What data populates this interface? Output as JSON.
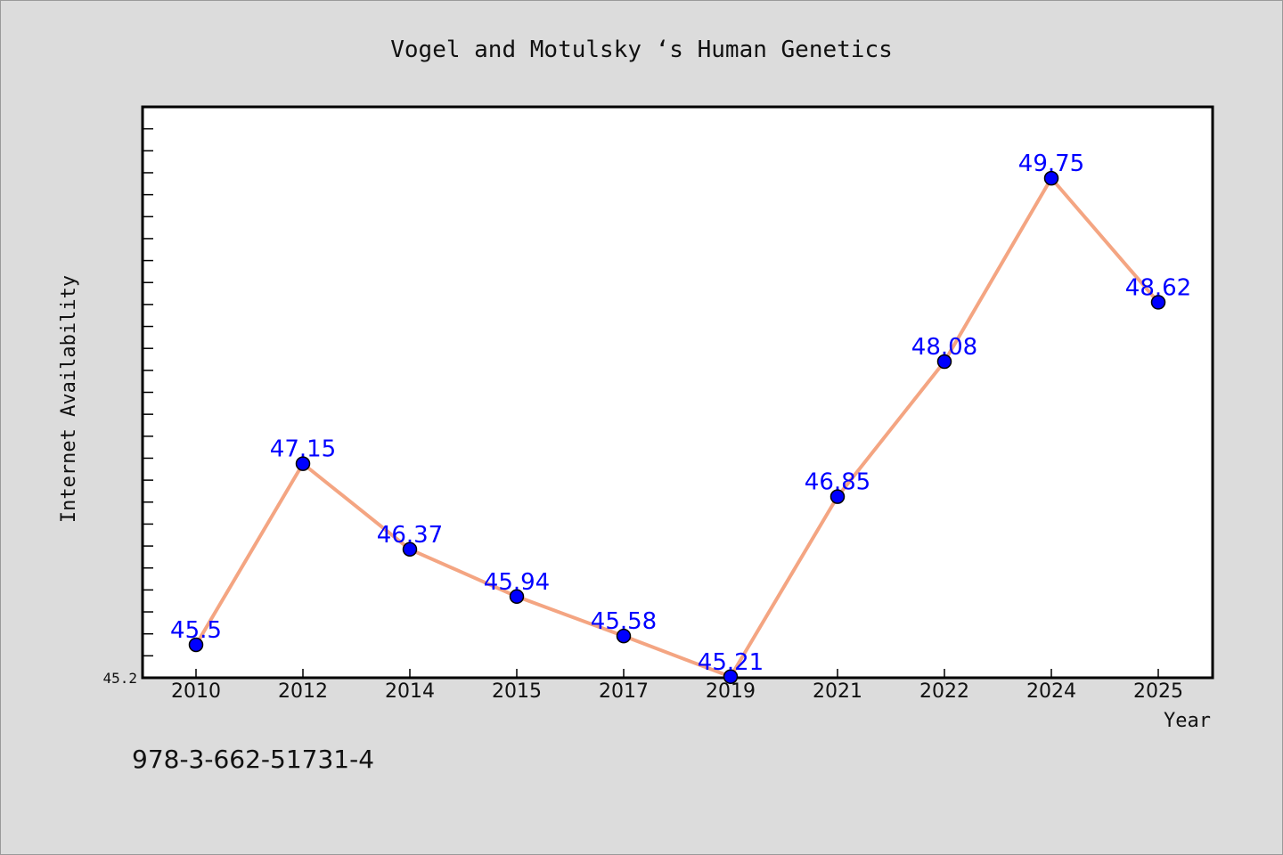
{
  "chart_data": {
    "type": "line",
    "title": "Vogel and Motulsky ‘s Human Genetics",
    "xlabel": "Year",
    "ylabel": "Internet Availability",
    "categories": [
      "2010",
      "2012",
      "2014",
      "2015",
      "2017",
      "2019",
      "2021",
      "2022",
      "2024",
      "2025"
    ],
    "series": [
      {
        "values": [
          45.5,
          47.15,
          46.37,
          45.94,
          45.58,
          45.21,
          46.85,
          48.08,
          49.75,
          48.62
        ]
      }
    ],
    "data_labels": [
      "45.5",
      "47.15",
      "46.37",
      "45.94",
      "45.58",
      "45.21",
      "46.85",
      "48.08",
      "49.75",
      "48.62"
    ],
    "y_tick_labels": [
      "45.2"
    ],
    "ylim": [
      45.2,
      50.4
    ],
    "grid": false,
    "colors": {
      "line": "#f4a582",
      "marker": "#0000ff",
      "marker_edge": "#000000",
      "data_label": "#0000ff",
      "plot_background": "#ffffff",
      "page_background": "#dcdcdc"
    }
  },
  "footer": {
    "isbn": "978-3-662-51731-4"
  }
}
